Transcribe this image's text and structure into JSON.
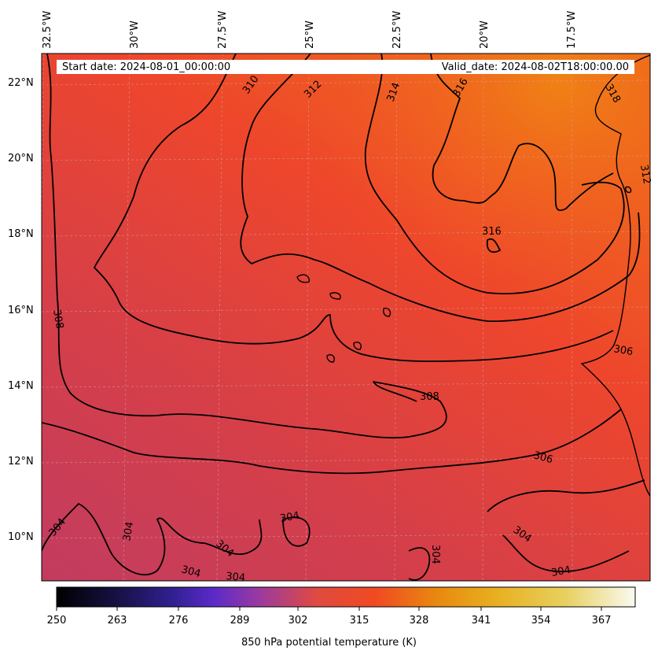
{
  "map": {
    "start_date": "Start date: 2024-08-01_00:00:00",
    "valid_date": "Valid_date: 2024-08-02T18:00:00.00",
    "longitude_labels": [
      "32.5°W",
      "30°W",
      "27.5°W",
      "25°W",
      "22.5°W",
      "20°W",
      "17.5°W"
    ],
    "latitude_labels": [
      "22°N",
      "20°N",
      "18°N",
      "16°N",
      "14°N",
      "12°N",
      "10°N"
    ],
    "contour_labels": [
      "310",
      "312",
      "314",
      "316",
      "318",
      "312",
      "316",
      "308",
      "306",
      "308",
      "306",
      "304",
      "304",
      "304",
      "304",
      "304",
      "304",
      "304",
      "304",
      "304"
    ],
    "colors": {
      "contour": "#000000",
      "grid": "#c0c0c0",
      "cool": "#cc4455",
      "warm": "#f04a2a",
      "hot": "#f07a10"
    }
  },
  "colorbar": {
    "label": "850 hPa potential temperature (K)",
    "ticks": [
      "250",
      "263",
      "276",
      "289",
      "302",
      "315",
      "328",
      "341",
      "354",
      "367"
    ],
    "colormap": "CMRmap"
  },
  "chart_data": {
    "type": "heatmap",
    "title": "",
    "variable": "850 hPa potential temperature (K)",
    "value_range": [
      250,
      373
    ],
    "contour_levels": [
      304,
      306,
      308,
      310,
      312,
      314,
      316,
      318
    ],
    "lon_range": [
      "32.5°W",
      "15.5°W"
    ],
    "lat_range": [
      "9°N",
      "23°N"
    ]
  }
}
